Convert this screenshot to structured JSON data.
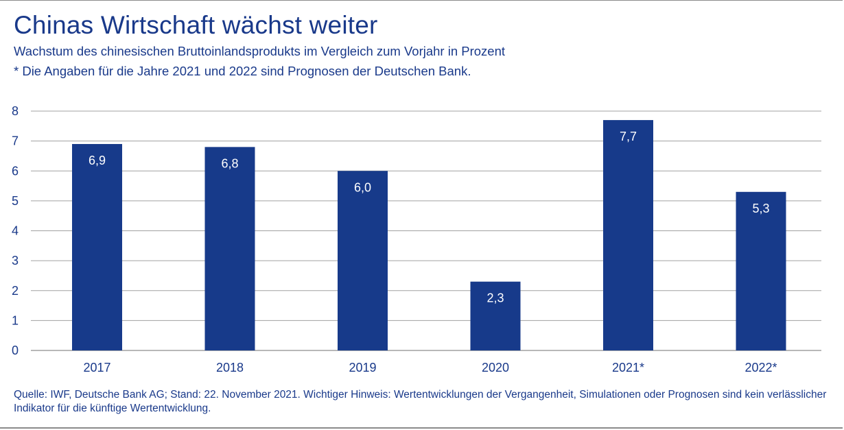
{
  "chart_data": {
    "type": "bar",
    "title": "Chinas Wirtschaft wächst weiter",
    "subtitle": "Wachstum des chinesischen Bruttoinlandsprodukts im Vergleich zum Vorjahr in Prozent",
    "note": "* Die Angaben für die Jahre 2021 und 2022 sind Prognosen der Deutschen Bank.",
    "categories": [
      "2017",
      "2018",
      "2019",
      "2020",
      "2021*",
      "2022*"
    ],
    "values": [
      6.9,
      6.8,
      6.0,
      2.3,
      7.7,
      5.3
    ],
    "value_labels": [
      "6,9",
      "6,8",
      "6,0",
      "2,3",
      "7,7",
      "5,3"
    ],
    "yticks": [
      "0",
      "1",
      "2",
      "3",
      "4",
      "5",
      "6",
      "7",
      "8"
    ],
    "ylim": [
      0,
      8
    ],
    "xlabel": "",
    "ylabel": "",
    "grid": true,
    "bar_color": "#173a8a",
    "grid_color": "#a0a0a0",
    "text_color": "#19398a"
  },
  "footer": {
    "source": "Quelle: IWF, Deutsche Bank AG; Stand: 22. November 2021. Wichtiger Hinweis: Wertentwicklungen der Vergangenheit, Simulationen oder Prognosen sind kein verlässlicher Indikator für die künftige Wertentwicklung."
  }
}
